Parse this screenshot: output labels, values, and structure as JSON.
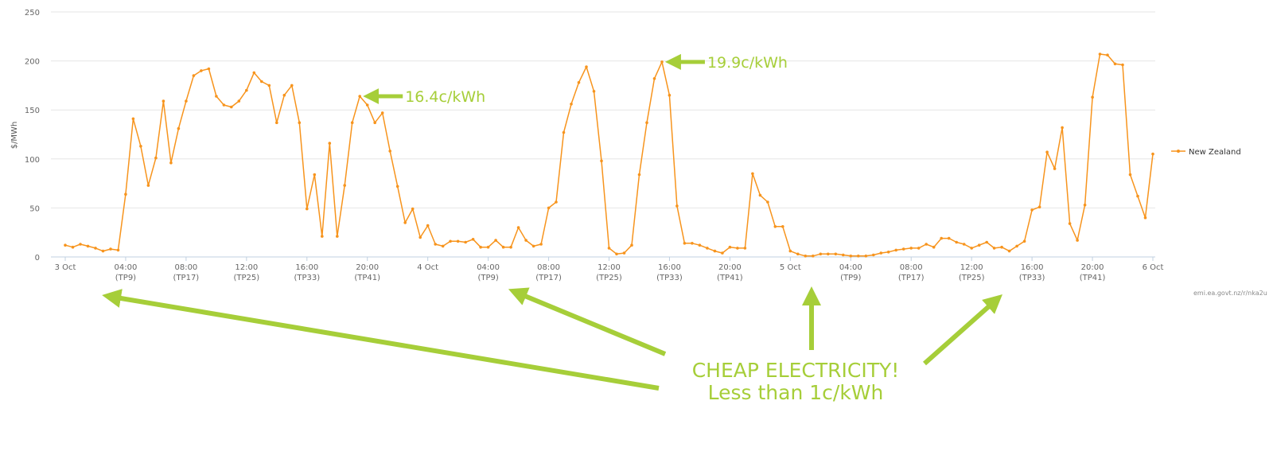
{
  "chart_data": {
    "type": "line",
    "title": "",
    "xlabel": "",
    "ylabel": "$/MWh",
    "ylim": [
      0,
      250
    ],
    "yticks": [
      0,
      50,
      100,
      150,
      200,
      250
    ],
    "grid": true,
    "legend_position": "right",
    "x_tick_labels": [
      {
        "top": "3 Oct",
        "bottom": ""
      },
      {
        "top": "04:00",
        "bottom": "(TP9)"
      },
      {
        "top": "08:00",
        "bottom": "(TP17)"
      },
      {
        "top": "12:00",
        "bottom": "(TP25)"
      },
      {
        "top": "16:00",
        "bottom": "(TP33)"
      },
      {
        "top": "20:00",
        "bottom": "(TP41)"
      },
      {
        "top": "4 Oct",
        "bottom": ""
      },
      {
        "top": "04:00",
        "bottom": "(TP9)"
      },
      {
        "top": "08:00",
        "bottom": "(TP17)"
      },
      {
        "top": "12:00",
        "bottom": "(TP25)"
      },
      {
        "top": "16:00",
        "bottom": "(TP33)"
      },
      {
        "top": "20:00",
        "bottom": "(TP41)"
      },
      {
        "top": "5 Oct",
        "bottom": ""
      },
      {
        "top": "04:00",
        "bottom": "(TP9)"
      },
      {
        "top": "08:00",
        "bottom": "(TP17)"
      },
      {
        "top": "12:00",
        "bottom": "(TP25)"
      },
      {
        "top": "16:00",
        "bottom": "(TP33)"
      },
      {
        "top": "20:00",
        "bottom": "(TP41)"
      },
      {
        "top": "6 Oct",
        "bottom": ""
      }
    ],
    "series": [
      {
        "name": "New Zealand",
        "color": "#f7941d",
        "values": [
          12,
          10,
          13,
          11,
          9,
          6,
          8,
          7,
          64,
          141,
          113,
          73,
          101,
          159,
          96,
          131,
          159,
          185,
          190,
          192,
          164,
          155,
          153,
          159,
          170,
          188,
          179,
          175,
          137,
          165,
          175,
          137,
          49,
          84,
          21,
          116,
          21,
          73,
          137,
          164,
          155,
          137,
          147,
          108,
          72,
          35,
          49,
          20,
          32,
          13,
          11,
          16,
          16,
          15,
          18,
          10,
          10,
          17,
          10,
          10,
          30,
          17,
          11,
          13,
          50,
          56,
          127,
          156,
          178,
          194,
          169,
          98,
          9,
          3,
          4,
          12,
          84,
          137,
          182,
          199,
          165,
          52,
          14,
          14,
          12,
          9,
          6,
          4,
          10,
          9,
          9,
          85,
          63,
          56,
          31,
          31,
          6,
          3,
          1,
          1,
          3,
          3,
          3,
          2,
          1,
          1,
          1,
          2,
          4,
          5,
          7,
          8,
          9,
          9,
          13,
          10,
          19,
          19,
          15,
          13,
          9,
          12,
          15,
          9,
          10,
          6,
          11,
          16,
          48,
          51,
          107,
          90,
          132,
          34,
          17,
          53,
          163,
          207,
          206,
          197,
          196,
          84,
          62,
          40,
          105
        ]
      }
    ],
    "annotations": [
      {
        "text": "16.4c/kWh",
        "x_index": 39,
        "y": 164
      },
      {
        "text": "19.9c/kWh",
        "x_index": 79,
        "y": 199
      }
    ]
  },
  "callout": {
    "line1": "CHEAP ELECTRICITY!",
    "line2": "Less than 1c/kWh"
  },
  "credit": "emi.ea.govt.nz/r/nka2u",
  "colors": {
    "series": "#f7941d",
    "annotation": "#a6ce39",
    "grid": "#e6e6e6",
    "axis": "#c0d0e0"
  }
}
